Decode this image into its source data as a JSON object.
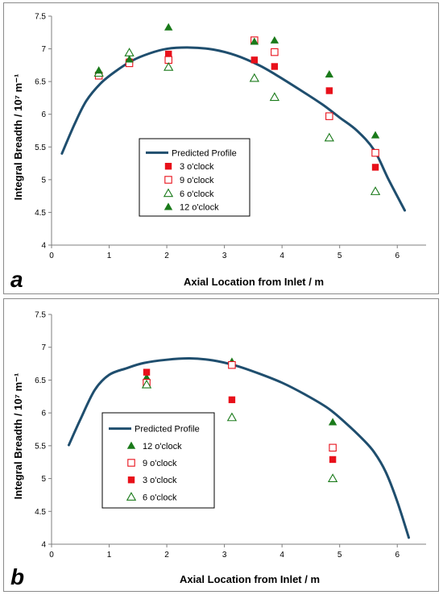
{
  "colors": {
    "profile": "#1f4e6e",
    "red": "#e8101a",
    "green": "#1a7a1a"
  },
  "chart_data": [
    {
      "type": "scatter",
      "panel_label": "a",
      "xlabel": "Axial Location from Inlet / m",
      "ylabel": "Integral Breadth / 10⁷ m⁻¹",
      "xlim": [
        0,
        6.5
      ],
      "ylim": [
        4,
        7.5
      ],
      "xticks": [
        "0",
        "1",
        "2",
        "3",
        "4",
        "5",
        "6"
      ],
      "yticks": [
        "4",
        "4.5",
        "5",
        "5.5",
        "6",
        "6.5",
        "7",
        "7.5"
      ],
      "grid": false,
      "legend_position": "center-left",
      "legend_order": [
        "Predicted Profile",
        "3 o'clock",
        "9 o'clock",
        "6 o'clock",
        "12 o'clock"
      ],
      "series": [
        {
          "name": "Predicted Profile",
          "kind": "line",
          "color": "#1f4e6e",
          "x": [
            0.18,
            0.4,
            0.6,
            0.85,
            1.1,
            1.4,
            1.7,
            2.0,
            2.4,
            2.8,
            3.2,
            3.6,
            3.9,
            4.3,
            4.7,
            5.0,
            5.3,
            5.6,
            5.85,
            6.13
          ],
          "y": [
            5.4,
            5.85,
            6.2,
            6.47,
            6.65,
            6.82,
            6.93,
            7.0,
            7.02,
            6.99,
            6.9,
            6.75,
            6.6,
            6.38,
            6.15,
            5.95,
            5.75,
            5.45,
            5.0,
            4.53
          ]
        },
        {
          "name": "3 o'clock",
          "marker": "square-filled",
          "color": "#e8101a",
          "x": [
            0.82,
            1.35,
            2.03,
            3.52,
            3.87,
            4.82,
            5.62
          ],
          "y": [
            6.6,
            6.8,
            6.92,
            6.83,
            6.73,
            6.36,
            5.19
          ]
        },
        {
          "name": "9 o'clock",
          "marker": "square-open",
          "color": "#e8101a",
          "x": [
            0.82,
            1.35,
            2.03,
            3.52,
            3.87,
            4.82,
            5.62
          ],
          "y": [
            6.59,
            6.78,
            6.83,
            7.13,
            6.95,
            5.97,
            5.41
          ]
        },
        {
          "name": "6 o'clock",
          "marker": "triangle-open",
          "color": "#1a7a1a",
          "x": [
            0.82,
            1.35,
            2.03,
            3.52,
            3.87,
            4.82,
            5.62
          ],
          "y": [
            6.63,
            6.94,
            6.72,
            6.55,
            6.26,
            5.64,
            4.82
          ]
        },
        {
          "name": "12 o'clock",
          "marker": "triangle-filled",
          "color": "#1a7a1a",
          "x": [
            0.82,
            1.35,
            2.03,
            3.52,
            3.87,
            4.82,
            5.62
          ],
          "y": [
            6.67,
            6.84,
            7.33,
            7.11,
            7.13,
            6.61,
            5.68
          ]
        }
      ]
    },
    {
      "type": "scatter",
      "panel_label": "b",
      "xlabel": "Axial Location from Inlet / m",
      "ylabel": "Integral Breadth / 10⁷ m⁻¹",
      "xlim": [
        0,
        6.5
      ],
      "ylim": [
        4,
        7.5
      ],
      "xticks": [
        "0",
        "1",
        "2",
        "3",
        "4",
        "5",
        "6"
      ],
      "yticks": [
        "4",
        "4.5",
        "5",
        "5.5",
        "6",
        "6.5",
        "7",
        "7.5"
      ],
      "grid": false,
      "legend_position": "bottom-left",
      "legend_order": [
        "Predicted Profile",
        "12 o'clock",
        "9 o'clock",
        "3 o'clock",
        "6 o'clock"
      ],
      "series": [
        {
          "name": "Predicted Profile",
          "kind": "line",
          "color": "#1f4e6e",
          "x": [
            0.3,
            0.5,
            0.75,
            1.0,
            1.3,
            1.6,
            2.0,
            2.4,
            2.8,
            3.2,
            3.6,
            4.0,
            4.4,
            4.8,
            5.1,
            5.4,
            5.6,
            5.8,
            6.0,
            6.2
          ],
          "y": [
            5.51,
            5.9,
            6.35,
            6.58,
            6.68,
            6.76,
            6.81,
            6.83,
            6.8,
            6.72,
            6.6,
            6.46,
            6.28,
            6.07,
            5.85,
            5.6,
            5.4,
            5.1,
            4.65,
            4.1
          ]
        },
        {
          "name": "12 o'clock",
          "marker": "triangle-filled",
          "color": "#1a7a1a",
          "x": [
            1.65,
            3.13,
            4.88
          ],
          "y": [
            6.54,
            6.78,
            5.86
          ]
        },
        {
          "name": "9 o'clock",
          "marker": "square-open",
          "color": "#e8101a",
          "x": [
            1.65,
            3.13,
            4.88
          ],
          "y": [
            6.46,
            6.73,
            5.47
          ]
        },
        {
          "name": "3 o'clock",
          "marker": "square-filled",
          "color": "#e8101a",
          "x": [
            1.65,
            3.13,
            4.88
          ],
          "y": [
            6.62,
            6.2,
            5.29
          ]
        },
        {
          "name": "6 o'clock",
          "marker": "triangle-open",
          "color": "#1a7a1a",
          "x": [
            1.65,
            3.13,
            4.88
          ],
          "y": [
            6.43,
            5.93,
            5.0
          ]
        }
      ]
    }
  ]
}
